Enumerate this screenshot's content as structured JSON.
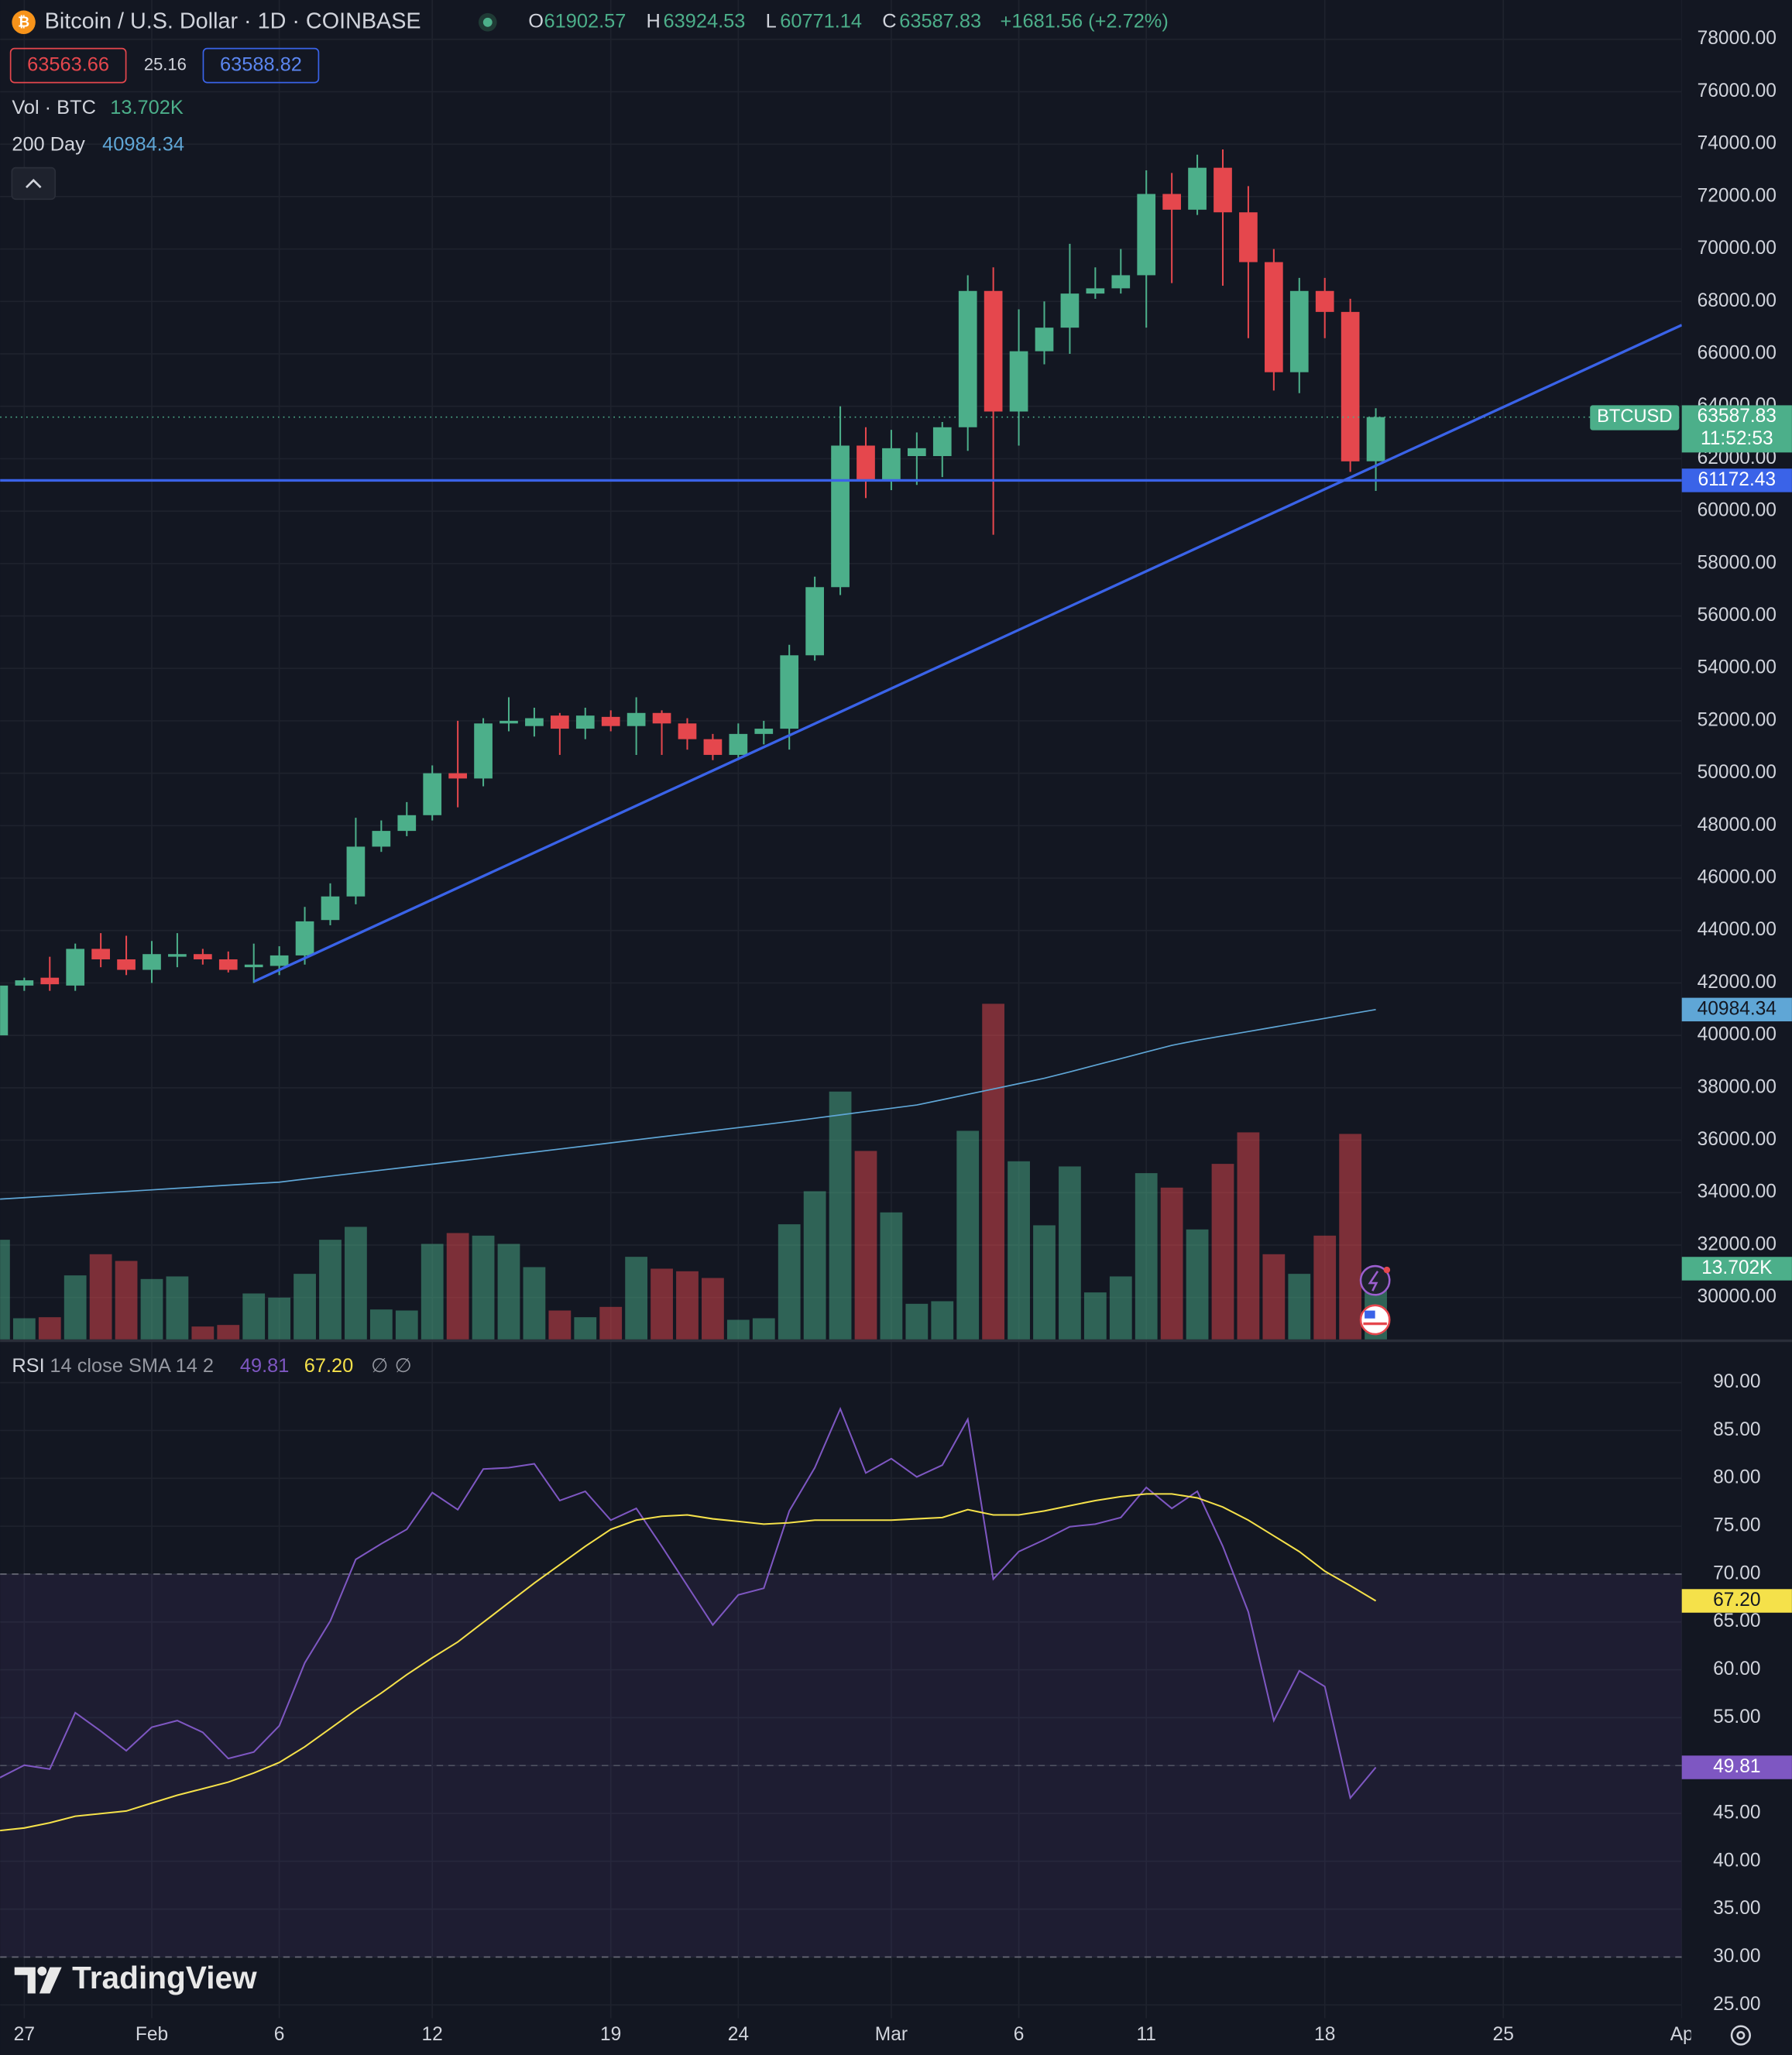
{
  "branding": "TradingView",
  "chart_data": [
    {
      "type": "candlestick",
      "title": "Bitcoin / U.S. Dollar · 1D · COINBASE",
      "ohlc_labels": [
        "O",
        "H",
        "L",
        "C"
      ],
      "change": "+1681.56 (+2.72%)",
      "bid": 63563.66,
      "spread": 25.16,
      "ask": 63588.82,
      "symbol_badge": "BTCUSD",
      "countdown": "11:52:53",
      "up_color": "#4caf8a",
      "down_color": "#e5474d",
      "grid": true,
      "categories": [
        null,
        "27",
        null,
        null,
        null,
        null,
        "Feb",
        null,
        null,
        null,
        null,
        "6",
        null,
        null,
        null,
        null,
        null,
        "12",
        null,
        null,
        null,
        null,
        null,
        null,
        "19",
        null,
        null,
        null,
        null,
        "24",
        null,
        null,
        null,
        null,
        null,
        "Mar",
        null,
        null,
        null,
        null,
        "6",
        null,
        null,
        null,
        null,
        "11",
        null,
        null,
        null,
        null,
        null,
        null,
        "18",
        null,
        null,
        null,
        null,
        null,
        null,
        "25",
        null,
        null,
        null,
        null,
        null,
        null,
        "Ap"
      ],
      "open": [
        40000,
        41900,
        42200,
        41900,
        43300,
        42900,
        42500,
        43000,
        43100,
        42900,
        42600,
        42650,
        43050,
        44400,
        45300,
        47200,
        47800,
        48400,
        50000,
        49800,
        51900,
        51800,
        52200,
        51700,
        52150,
        51800,
        52300,
        51900,
        51300,
        50700,
        51500,
        51700,
        54500,
        57100,
        62500,
        61200,
        62100,
        62100,
        63200,
        68400,
        63800,
        66100,
        67000,
        68300,
        68500,
        69000,
        72100,
        71500,
        73100,
        71400,
        69500,
        65300,
        68400,
        67600,
        61902.57,
        null,
        null,
        null,
        null,
        null,
        null,
        null,
        null,
        null,
        null,
        null,
        null
      ],
      "high": [
        42000,
        42200,
        43000,
        43500,
        43900,
        43800,
        43600,
        43900,
        43300,
        43200,
        43500,
        43400,
        44900,
        45800,
        48300,
        48200,
        48900,
        50300,
        52000,
        52100,
        52900,
        52500,
        52300,
        52500,
        52400,
        52900,
        52400,
        52100,
        51500,
        51900,
        52000,
        54900,
        57500,
        64000,
        63200,
        63100,
        63000,
        63400,
        69000,
        69300,
        67700,
        68000,
        70200,
        69300,
        70000,
        73000,
        72900,
        73600,
        73800,
        72400,
        70000,
        68900,
        68900,
        68100,
        63924.53,
        null,
        null,
        null,
        null,
        null,
        null,
        null,
        null,
        null,
        null,
        null,
        null
      ],
      "low": [
        39900,
        41700,
        41700,
        41700,
        42600,
        42300,
        42000,
        42600,
        42700,
        42400,
        42000,
        42300,
        42700,
        44200,
        45000,
        47000,
        47600,
        48200,
        48700,
        49500,
        51600,
        51400,
        50700,
        51300,
        51600,
        50700,
        50700,
        50900,
        50500,
        50500,
        51100,
        50900,
        54300,
        56800,
        60500,
        60800,
        61000,
        61300,
        62300,
        59100,
        62500,
        65600,
        66000,
        68100,
        68300,
        67000,
        68700,
        71300,
        68600,
        66600,
        64600,
        64500,
        66600,
        61500,
        60771.14,
        null,
        null,
        null,
        null,
        null,
        null,
        null,
        null,
        null,
        null,
        null,
        null
      ],
      "close": [
        41900,
        42100,
        41950,
        43300,
        42900,
        42500,
        43100,
        43100,
        42900,
        42500,
        42700,
        43050,
        44350,
        45300,
        47200,
        47800,
        48400,
        50000,
        49800,
        51900,
        52000,
        52100,
        51700,
        52200,
        51800,
        52300,
        51900,
        51300,
        50700,
        51500,
        51700,
        54500,
        57100,
        62500,
        61200,
        62400,
        62400,
        63200,
        68400,
        63800,
        66100,
        67000,
        68300,
        68500,
        69000,
        72100,
        71500,
        73100,
        71400,
        69500,
        65300,
        68400,
        67600,
        61900,
        63587.83,
        null,
        null,
        null,
        null,
        null,
        null,
        null,
        null,
        null,
        null,
        null,
        null
      ],
      "ylim": [
        28400,
        79500
      ],
      "yticks": [
        {
          "value": 30000,
          "label": "30000.00"
        },
        {
          "value": 32000,
          "label": "32000.00"
        },
        {
          "value": 34000,
          "label": "34000.00"
        },
        {
          "value": 36000,
          "label": "36000.00"
        },
        {
          "value": 38000,
          "label": "38000.00"
        },
        {
          "value": 40000,
          "label": "40000.00"
        },
        {
          "value": 42000,
          "label": "42000.00"
        },
        {
          "value": 44000,
          "label": "44000.00"
        },
        {
          "value": 46000,
          "label": "46000.00"
        },
        {
          "value": 48000,
          "label": "48000.00"
        },
        {
          "value": 50000,
          "label": "50000.00"
        },
        {
          "value": 52000,
          "label": "52000.00"
        },
        {
          "value": 54000,
          "label": "54000.00"
        },
        {
          "value": 56000,
          "label": "56000.00"
        },
        {
          "value": 58000,
          "label": "58000.00"
        },
        {
          "value": 60000,
          "label": "60000.00"
        },
        {
          "value": 62000,
          "label": "62000.00"
        },
        {
          "value": 64000,
          "label": "64000.00"
        },
        {
          "value": 66000,
          "label": "66000.00"
        },
        {
          "value": 68000,
          "label": "68000.00"
        },
        {
          "value": 70000,
          "label": "70000.00"
        },
        {
          "value": 72000,
          "label": "72000.00"
        },
        {
          "value": 74000,
          "label": "74000.00"
        },
        {
          "value": 76000,
          "label": "76000.00"
        },
        {
          "value": 78000,
          "label": "78000.00"
        }
      ],
      "horizontal_line": {
        "value": 61172.43,
        "color": "#3a63e8"
      },
      "trend_line": {
        "x": [
          10,
          66
        ],
        "y": [
          42050,
          67100
        ],
        "color": "#3a63e8"
      },
      "series": [
        {
          "name": "Vol · BTC",
          "type": "bar",
          "color": "#4caf8a",
          "ylim": [
            0,
            259400
          ],
          "values": [
            19300,
            4100,
            4300,
            12400,
            16500,
            15200,
            11700,
            12200,
            2500,
            2800,
            8900,
            8100,
            12700,
            19300,
            21800,
            5800,
            5600,
            18500,
            20600,
            20100,
            18500,
            14000,
            5600,
            4300,
            6300,
            16000,
            13700,
            13200,
            11900,
            3800,
            4100,
            22300,
            28700,
            48000,
            36500,
            24600,
            6900,
            7400,
            40400,
            65000,
            34500,
            22100,
            33500,
            9100,
            12200,
            32200,
            29400,
            21300,
            34000,
            40100,
            16500,
            12700,
            20100,
            39800,
            13702,
            null,
            null,
            null,
            null,
            null,
            null,
            null,
            null,
            null,
            null,
            null,
            null
          ],
          "value_labels": [
            null,
            null,
            null,
            null,
            null,
            null,
            null,
            null,
            null,
            null,
            null,
            null,
            null,
            null,
            null,
            null,
            null,
            null,
            null,
            null,
            null,
            null,
            null,
            null,
            null,
            null,
            null,
            null,
            null,
            null,
            null,
            null,
            null,
            null,
            null,
            null,
            null,
            null,
            null,
            null,
            null,
            null,
            null,
            null,
            null,
            null,
            null,
            null,
            null,
            null,
            null,
            null,
            null,
            null,
            "13.702K",
            null,
            null,
            null,
            null,
            null,
            null,
            null,
            null,
            null,
            null,
            null,
            null
          ]
        },
        {
          "name": "200 Day",
          "type": "line",
          "color": "#5fa6d6",
          "values": [
            33750,
            33809,
            33869,
            33928,
            33988,
            34047,
            34106,
            34166,
            34225,
            34285,
            34344,
            34400,
            34517,
            34631,
            34745,
            34859,
            34972,
            35086,
            35200,
            35314,
            35433,
            35548,
            35665,
            35781,
            35898,
            36015,
            36131,
            36248,
            36365,
            36481,
            36595,
            36713,
            36839,
            36966,
            37092,
            37218,
            37345,
            37545,
            37750,
            37954,
            38158,
            38363,
            38608,
            38861,
            39114,
            39367,
            39620,
            39812,
            39980,
            40147,
            40315,
            40483,
            40650,
            40818,
            40984.34,
            null,
            null,
            null,
            null,
            null,
            null,
            null,
            null,
            null,
            null,
            null,
            null
          ]
        }
      ]
    },
    {
      "type": "line",
      "title": "RSI",
      "subtitle": "14 close SMA 14 2",
      "flags": [
        "∅",
        "∅"
      ],
      "ylim": [
        23.6,
        94.1
      ],
      "yticks": [
        {
          "value": 25,
          "label": "25.00"
        },
        {
          "value": 30,
          "label": "30.00"
        },
        {
          "value": 35,
          "label": "35.00"
        },
        {
          "value": 40,
          "label": "40.00"
        },
        {
          "value": 45,
          "label": "45.00"
        },
        {
          "value": 50,
          "label": "50.00"
        },
        {
          "value": 55,
          "label": "55.00"
        },
        {
          "value": 60,
          "label": "60.00"
        },
        {
          "value": 65,
          "label": "65.00"
        },
        {
          "value": 70,
          "label": "70.00"
        },
        {
          "value": 75,
          "label": "75.00"
        },
        {
          "value": 80,
          "label": "80.00"
        },
        {
          "value": 85,
          "label": "85.00"
        },
        {
          "value": 90,
          "label": "90.00"
        }
      ],
      "bands": {
        "upper": 70,
        "middle": 50,
        "lower": 30,
        "color": "#7e57c2"
      },
      "series": [
        {
          "color": "#7e57c2",
          "badge_text": "#ffffff",
          "values": [
            48.68,
            50.04,
            49.63,
            55.52,
            53.6,
            51.55,
            54.01,
            54.7,
            53.47,
            50.73,
            51.41,
            54.15,
            60.72,
            65.1,
            71.53,
            73.17,
            74.67,
            78.51,
            76.73,
            80.97,
            81.11,
            81.52,
            77.68,
            78.64,
            75.63,
            76.86,
            72.9,
            68.79,
            64.69,
            67.83,
            68.52,
            76.59,
            81.11,
            87.26,
            80.56,
            82.06,
            80.15,
            81.38,
            86.17,
            69.47,
            72.35,
            73.58,
            74.95,
            75.22,
            75.91,
            79.05,
            76.86,
            78.64,
            72.9,
            66.05,
            54.7,
            59.9,
            58.25,
            46.62,
            49.81,
            null,
            null,
            null,
            null,
            null,
            null,
            null,
            null,
            null,
            null,
            null,
            null
          ]
        },
        {
          "color": "#f5e14a",
          "badge_text": "#131722",
          "values": [
            43.2,
            43.48,
            44.02,
            44.71,
            44.98,
            45.25,
            46.08,
            46.9,
            47.58,
            48.27,
            49.22,
            50.32,
            51.96,
            53.87,
            55.79,
            57.57,
            59.49,
            61.26,
            62.91,
            64.96,
            67.01,
            69.06,
            70.98,
            72.9,
            74.67,
            75.63,
            76.04,
            76.18,
            75.77,
            75.5,
            75.22,
            75.36,
            75.63,
            75.63,
            75.63,
            75.63,
            75.77,
            75.91,
            76.73,
            76.18,
            76.18,
            76.59,
            77.14,
            77.68,
            78.09,
            78.37,
            78.37,
            77.96,
            77.0,
            75.63,
            73.99,
            72.35,
            70.3,
            68.79,
            67.2,
            null,
            null,
            null,
            null,
            null,
            null,
            null,
            null,
            null,
            null,
            null,
            null
          ],
          "value_labels": [
            null,
            null,
            null,
            null,
            null,
            null,
            null,
            null,
            null,
            null,
            null,
            null,
            null,
            null,
            null,
            null,
            null,
            null,
            null,
            null,
            null,
            null,
            null,
            null,
            null,
            null,
            null,
            null,
            null,
            null,
            null,
            null,
            null,
            null,
            null,
            null,
            null,
            null,
            null,
            null,
            null,
            null,
            null,
            null,
            null,
            null,
            null,
            null,
            null,
            null,
            null,
            null,
            null,
            null,
            "67.20",
            null,
            null,
            null,
            null,
            null,
            null,
            null,
            null,
            null,
            null,
            null,
            null
          ]
        }
      ]
    }
  ]
}
